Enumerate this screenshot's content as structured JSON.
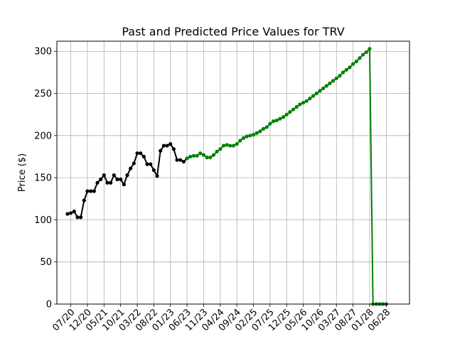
{
  "chart_data": {
    "type": "line",
    "title": "Past and Predicted Price Values for TRV",
    "xlabel": "",
    "ylabel": "Price ($)",
    "ylim": [
      0,
      312
    ],
    "yticks": [
      0,
      50,
      100,
      150,
      200,
      250,
      300
    ],
    "xlim": [
      -4.2,
      102
    ],
    "xticks": [
      {
        "x": 0,
        "label": "07/20"
      },
      {
        "x": 5,
        "label": "12/20"
      },
      {
        "x": 10,
        "label": "05/21"
      },
      {
        "x": 15,
        "label": "10/21"
      },
      {
        "x": 20,
        "label": "03/22"
      },
      {
        "x": 25,
        "label": "08/22"
      },
      {
        "x": 30,
        "label": "01/23"
      },
      {
        "x": 35,
        "label": "06/23"
      },
      {
        "x": 40,
        "label": "11/23"
      },
      {
        "x": 45,
        "label": "04/24"
      },
      {
        "x": 50,
        "label": "09/24"
      },
      {
        "x": 55,
        "label": "02/25"
      },
      {
        "x": 60,
        "label": "07/25"
      },
      {
        "x": 65,
        "label": "12/25"
      },
      {
        "x": 70,
        "label": "05/26"
      },
      {
        "x": 75,
        "label": "10/26"
      },
      {
        "x": 80,
        "label": "03/27"
      },
      {
        "x": 85,
        "label": "08/27"
      },
      {
        "x": 90,
        "label": "01/28"
      },
      {
        "x": 95,
        "label": "06/28"
      }
    ],
    "grid": true,
    "series": [
      {
        "color": "#000000",
        "x": [
          -1,
          0,
          1,
          2,
          3,
          4,
          5,
          6,
          7,
          8,
          9,
          10,
          11,
          12,
          13,
          14,
          15,
          16,
          17,
          18,
          19,
          20,
          21,
          22,
          23,
          24,
          25,
          26,
          27,
          28,
          29,
          30,
          31,
          32,
          33,
          34,
          35
        ],
        "values": [
          107,
          108,
          110,
          103,
          103,
          123,
          134,
          134,
          134,
          144,
          148,
          153,
          144,
          144,
          153,
          148,
          148,
          142,
          153,
          161,
          167,
          179,
          179,
          175,
          166,
          166,
          159,
          152,
          182,
          188,
          188,
          190,
          184,
          171,
          171,
          169,
          173
        ]
      },
      {
        "color": "#008000",
        "x": [
          35,
          36,
          37,
          38,
          39,
          40,
          41,
          42,
          43,
          44,
          45,
          46,
          47,
          48,
          49,
          50,
          51,
          52,
          53,
          54,
          55,
          56,
          57,
          58,
          59,
          60,
          61,
          62,
          63,
          64,
          65,
          66,
          67,
          68,
          69,
          70,
          71,
          72,
          73,
          74,
          75,
          76,
          77,
          78,
          79,
          80,
          81,
          82,
          83,
          84,
          85,
          86,
          87,
          88,
          89,
          90,
          91,
          92,
          93,
          94,
          95
        ],
        "values": [
          173,
          175,
          176,
          176,
          179,
          177,
          174,
          174,
          177,
          181,
          184,
          188,
          189,
          188,
          188,
          190,
          194,
          197,
          199,
          200,
          201,
          203,
          205,
          208,
          210,
          214,
          217,
          218,
          220,
          222,
          225,
          228,
          231,
          234,
          237,
          239,
          241,
          244,
          247,
          250,
          253,
          256,
          259,
          262,
          265,
          268,
          271,
          275,
          278,
          281,
          285,
          288,
          292,
          296,
          299,
          303,
          0,
          0,
          0,
          0,
          0
        ]
      }
    ]
  }
}
